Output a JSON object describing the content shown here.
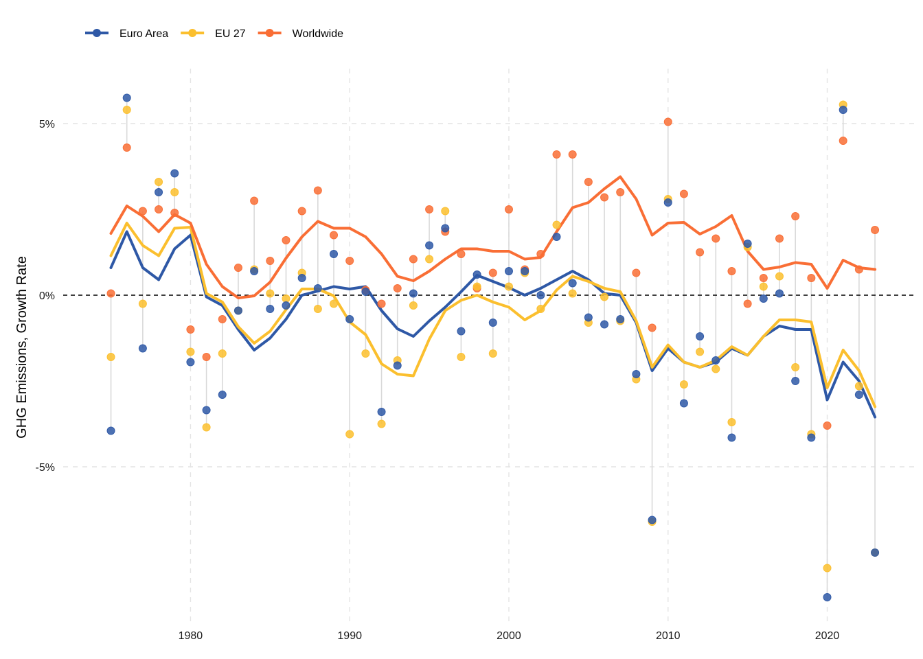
{
  "chart_data": {
    "type": "line",
    "title": "",
    "xlabel": "",
    "ylabel": "GHG Emissions, Growth Rate",
    "xlim": [
      1972,
      2025.5
    ],
    "ylim": [
      -9.5,
      6.6
    ],
    "x_ticks": [
      1980,
      1990,
      2000,
      2010,
      2020
    ],
    "x_tick_labels": [
      "1980",
      "1990",
      "2000",
      "2010",
      "2020"
    ],
    "y_ticks": [
      -5,
      0,
      5
    ],
    "y_tick_labels": [
      "-5%",
      "0%",
      "5%"
    ],
    "grid": "dashed",
    "reference_line": 0,
    "legend_position": "top-left",
    "x": [
      1975,
      1976,
      1977,
      1978,
      1979,
      1980,
      1981,
      1982,
      1983,
      1984,
      1985,
      1986,
      1987,
      1988,
      1989,
      1990,
      1991,
      1992,
      1993,
      1994,
      1995,
      1996,
      1997,
      1998,
      1999,
      2000,
      2001,
      2002,
      2003,
      2004,
      2005,
      2006,
      2007,
      2008,
      2009,
      2010,
      2011,
      2012,
      2013,
      2014,
      2015,
      2016,
      2017,
      2018,
      2019,
      2020,
      2021,
      2022,
      2023
    ],
    "series": [
      {
        "name": "Euro Area",
        "color": "#2e58a6",
        "points": [
          -3.95,
          5.75,
          -1.55,
          3.0,
          3.55,
          -1.95,
          -3.35,
          -2.9,
          -0.45,
          0.7,
          -0.4,
          -0.3,
          0.5,
          0.2,
          1.2,
          -0.7,
          0.1,
          -3.4,
          -2.05,
          0.05,
          1.45,
          1.95,
          -1.05,
          0.6,
          -0.8,
          0.7,
          0.7,
          0.0,
          1.7,
          0.35,
          -0.65,
          -0.85,
          -0.7,
          -2.3,
          -6.55,
          2.7,
          -3.15,
          -1.2,
          -1.9,
          -4.15,
          1.5,
          -0.1,
          0.05,
          -2.5,
          -4.15,
          -8.8,
          5.4,
          -2.9,
          -7.5
        ],
        "trend": [
          0.8,
          1.85,
          0.8,
          0.45,
          1.35,
          1.75,
          -0.05,
          -0.3,
          -1.0,
          -1.6,
          -1.25,
          -0.7,
          0.0,
          0.12,
          0.25,
          0.18,
          0.25,
          -0.45,
          -0.98,
          -1.2,
          -0.75,
          -0.35,
          0.1,
          0.58,
          0.4,
          0.22,
          0.0,
          0.2,
          0.45,
          0.7,
          0.45,
          0.05,
          0.0,
          -0.8,
          -2.2,
          -1.55,
          -1.95,
          -2.1,
          -1.95,
          -1.55,
          -1.75,
          -1.2,
          -0.9,
          -1.0,
          -1.0,
          -3.05,
          -1.95,
          -2.5,
          -3.55
        ]
      },
      {
        "name": "EU 27",
        "color": "#fbbf2e",
        "points": [
          -1.8,
          5.4,
          -0.25,
          3.3,
          3.0,
          -1.65,
          -3.85,
          -1.7,
          -0.45,
          0.75,
          0.05,
          -0.1,
          0.65,
          -0.4,
          -0.25,
          -4.05,
          -1.7,
          -3.75,
          -1.9,
          -0.3,
          1.05,
          2.45,
          -1.8,
          0.25,
          -1.7,
          0.25,
          0.65,
          -0.4,
          2.05,
          0.05,
          -0.8,
          -0.05,
          -0.75,
          -2.45,
          -6.6,
          2.8,
          -2.6,
          -1.65,
          -2.15,
          -3.7,
          1.4,
          0.25,
          0.55,
          -2.1,
          -4.05,
          -7.95,
          5.55,
          -2.65,
          -7.5
        ],
        "trend": [
          1.15,
          2.1,
          1.45,
          1.15,
          1.95,
          1.98,
          0.05,
          -0.2,
          -0.92,
          -1.4,
          -1.05,
          -0.42,
          0.18,
          0.18,
          -0.02,
          -0.78,
          -1.15,
          -2.0,
          -2.3,
          -2.35,
          -1.28,
          -0.45,
          -0.15,
          0.0,
          -0.2,
          -0.35,
          -0.72,
          -0.45,
          0.15,
          0.55,
          0.4,
          0.2,
          0.1,
          -0.75,
          -2.1,
          -1.45,
          -1.95,
          -2.1,
          -1.9,
          -1.5,
          -1.75,
          -1.2,
          -0.72,
          -0.72,
          -0.78,
          -2.7,
          -1.6,
          -2.2,
          -3.25
        ]
      },
      {
        "name": "Worldwide",
        "color": "#f96e35",
        "points": [
          0.05,
          4.3,
          2.45,
          2.5,
          2.4,
          -1.0,
          -1.8,
          -0.7,
          0.8,
          2.75,
          1.0,
          1.6,
          2.45,
          3.05,
          1.75,
          1.0,
          0.15,
          -0.25,
          0.2,
          1.05,
          2.5,
          1.85,
          1.2,
          0.2,
          0.65,
          2.5,
          0.75,
          1.2,
          4.1,
          4.1,
          3.3,
          2.85,
          3.0,
          0.65,
          -0.95,
          5.05,
          2.95,
          1.25,
          1.65,
          0.7,
          -0.25,
          0.5,
          1.65,
          2.3,
          0.5,
          -3.8,
          4.5,
          0.75,
          1.9
        ],
        "trend": [
          1.8,
          2.6,
          2.3,
          1.85,
          2.35,
          2.1,
          0.9,
          0.25,
          -0.08,
          -0.02,
          0.38,
          1.08,
          1.7,
          2.15,
          1.95,
          1.95,
          1.7,
          1.2,
          0.55,
          0.42,
          0.7,
          1.05,
          1.35,
          1.35,
          1.28,
          1.28,
          1.05,
          1.1,
          1.85,
          2.55,
          2.7,
          3.1,
          3.45,
          2.8,
          1.75,
          2.1,
          2.12,
          1.78,
          2.0,
          2.32,
          1.28,
          0.75,
          0.82,
          0.95,
          0.9,
          0.2,
          1.02,
          0.8,
          0.75
        ]
      }
    ]
  }
}
